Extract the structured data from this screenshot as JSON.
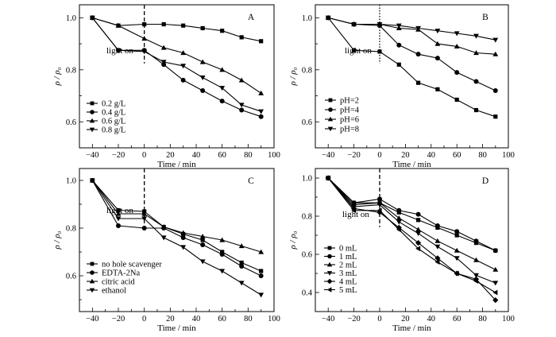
{
  "chart_data": [
    {
      "type": "line",
      "panel_label": "A",
      "xlabel": "Time / min",
      "ylabel": "ρ / ρ₀",
      "xlim": [
        -50,
        100
      ],
      "ylim": [
        0.5,
        1.05
      ],
      "xticks": [
        -40,
        -20,
        0,
        20,
        40,
        60,
        80,
        100
      ],
      "yticks": [
        0.6,
        0.8,
        1.0
      ],
      "annotation": "light on",
      "legend_position": "bottom-left",
      "series": [
        {
          "name": "0.2 g/L",
          "marker": "square",
          "x": [
            -40,
            -20,
            0,
            15,
            30,
            45,
            60,
            75,
            90
          ],
          "y": [
            1.0,
            0.97,
            0.975,
            0.975,
            0.97,
            0.96,
            0.95,
            0.925,
            0.91
          ]
        },
        {
          "name": "0.4 g/L",
          "marker": "circle",
          "x": [
            -40,
            -20,
            0,
            15,
            30,
            45,
            60,
            75,
            90
          ],
          "y": [
            1.0,
            0.875,
            0.875,
            0.82,
            0.76,
            0.72,
            0.68,
            0.645,
            0.62
          ]
        },
        {
          "name": "0.6 g/L",
          "marker": "triangle-up",
          "x": [
            -40,
            -20,
            0,
            15,
            30,
            45,
            60,
            75,
            90
          ],
          "y": [
            1.0,
            0.97,
            0.92,
            0.885,
            0.865,
            0.83,
            0.8,
            0.76,
            0.71
          ]
        },
        {
          "name": "0.8 g/L",
          "marker": "triangle-down",
          "x": [
            -40,
            -20,
            0,
            15,
            30,
            45,
            60,
            75,
            90
          ],
          "y": [
            1.0,
            0.875,
            0.87,
            0.83,
            0.815,
            0.77,
            0.73,
            0.665,
            0.64
          ]
        }
      ]
    },
    {
      "type": "line",
      "panel_label": "B",
      "xlabel": "Time / min",
      "ylabel": "ρ / ρ₀",
      "xlim": [
        -50,
        100
      ],
      "ylim": [
        0.5,
        1.05
      ],
      "xticks": [
        -40,
        -20,
        0,
        20,
        40,
        60,
        80,
        100
      ],
      "yticks": [
        0.6,
        0.8,
        1.0
      ],
      "annotation": "light on",
      "legend_position": "bottom-left",
      "series": [
        {
          "name": "pH=2",
          "marker": "square",
          "x": [
            -40,
            -20,
            0,
            15,
            30,
            45,
            60,
            75,
            90
          ],
          "y": [
            1.0,
            0.875,
            0.87,
            0.82,
            0.75,
            0.725,
            0.685,
            0.645,
            0.62
          ]
        },
        {
          "name": "pH=4",
          "marker": "circle",
          "x": [
            -40,
            -20,
            0,
            15,
            30,
            45,
            60,
            75,
            90
          ],
          "y": [
            1.0,
            0.975,
            0.97,
            0.895,
            0.86,
            0.845,
            0.79,
            0.755,
            0.72
          ]
        },
        {
          "name": "pH=6",
          "marker": "triangle-up",
          "x": [
            -40,
            -20,
            0,
            15,
            30,
            45,
            60,
            75,
            90
          ],
          "y": [
            1.0,
            0.975,
            0.975,
            0.96,
            0.955,
            0.9,
            0.89,
            0.865,
            0.86
          ]
        },
        {
          "name": "pH=8",
          "marker": "triangle-down",
          "x": [
            -40,
            -20,
            0,
            15,
            30,
            45,
            60,
            75,
            90
          ],
          "y": [
            1.0,
            0.975,
            0.975,
            0.97,
            0.96,
            0.95,
            0.94,
            0.93,
            0.915
          ]
        }
      ]
    },
    {
      "type": "line",
      "panel_label": "C",
      "xlabel": "Time / min",
      "ylabel": "ρ / ρ₀",
      "xlim": [
        -50,
        100
      ],
      "ylim": [
        0.45,
        1.05
      ],
      "xticks": [
        -40,
        -20,
        0,
        20,
        40,
        60,
        80,
        100
      ],
      "yticks": [
        0.6,
        0.8,
        1.0
      ],
      "annotation": "light on",
      "legend_position": "bottom-left",
      "series": [
        {
          "name": "no hole scavenger",
          "marker": "square",
          "x": [
            -40,
            -20,
            0,
            15,
            30,
            45,
            60,
            75,
            90
          ],
          "y": [
            1.0,
            0.875,
            0.87,
            0.805,
            0.775,
            0.75,
            0.7,
            0.655,
            0.62
          ]
        },
        {
          "name": "EDTA-2Na",
          "marker": "circle",
          "x": [
            -40,
            -20,
            0,
            15,
            30,
            45,
            60,
            75,
            90
          ],
          "y": [
            1.0,
            0.81,
            0.8,
            0.8,
            0.76,
            0.73,
            0.69,
            0.64,
            0.6
          ]
        },
        {
          "name": "citric acid",
          "marker": "triangle-up",
          "x": [
            -40,
            -20,
            0,
            15,
            30,
            45,
            60,
            75,
            90
          ],
          "y": [
            1.0,
            0.86,
            0.86,
            0.805,
            0.78,
            0.765,
            0.75,
            0.725,
            0.7
          ]
        },
        {
          "name": "ethanol",
          "marker": "triangle-down",
          "x": [
            -40,
            -20,
            0,
            15,
            30,
            45,
            60,
            75,
            90
          ],
          "y": [
            1.0,
            0.84,
            0.84,
            0.76,
            0.72,
            0.66,
            0.62,
            0.57,
            0.52
          ]
        }
      ]
    },
    {
      "type": "line",
      "panel_label": "D",
      "xlabel": "Time / min",
      "ylabel": "ρ / ρ₀",
      "xlim": [
        -50,
        100
      ],
      "ylim": [
        0.3,
        1.05
      ],
      "xticks": [
        -40,
        -20,
        0,
        20,
        40,
        60,
        80,
        100
      ],
      "yticks": [
        0.4,
        0.6,
        0.8,
        1.0
      ],
      "annotation": "light on",
      "legend_position": "bottom-left",
      "series": [
        {
          "name": "0 mL",
          "marker": "square",
          "x": [
            -40,
            -20,
            0,
            15,
            30,
            45,
            60,
            75,
            90
          ],
          "y": [
            1.0,
            0.87,
            0.87,
            0.82,
            0.78,
            0.74,
            0.7,
            0.66,
            0.62
          ]
        },
        {
          "name": "1 mL",
          "marker": "circle",
          "x": [
            -40,
            -20,
            0,
            15,
            30,
            45,
            60,
            75,
            90
          ],
          "y": [
            1.0,
            0.87,
            0.89,
            0.83,
            0.81,
            0.75,
            0.72,
            0.67,
            0.62
          ]
        },
        {
          "name": "2 mL",
          "marker": "triangle-up",
          "x": [
            -40,
            -20,
            0,
            15,
            30,
            45,
            60,
            75,
            90
          ],
          "y": [
            1.0,
            0.86,
            0.87,
            0.79,
            0.73,
            0.67,
            0.62,
            0.57,
            0.52
          ]
        },
        {
          "name": "3 mL",
          "marker": "triangle-down",
          "x": [
            -40,
            -20,
            0,
            15,
            30,
            45,
            60,
            75,
            90
          ],
          "y": [
            1.0,
            0.85,
            0.86,
            0.77,
            0.71,
            0.64,
            0.58,
            0.49,
            0.45
          ]
        },
        {
          "name": "4 mL",
          "marker": "diamond",
          "x": [
            -40,
            -20,
            0,
            15,
            30,
            45,
            60,
            75,
            90
          ],
          "y": [
            1.0,
            0.84,
            0.82,
            0.74,
            0.66,
            0.58,
            0.5,
            0.47,
            0.36
          ]
        },
        {
          "name": "5 mL",
          "marker": "triangle-left",
          "x": [
            -40,
            -20,
            0,
            15,
            30,
            45,
            60,
            75,
            90
          ],
          "y": [
            1.0,
            0.83,
            0.83,
            0.73,
            0.63,
            0.56,
            0.5,
            0.46,
            0.4
          ]
        }
      ]
    }
  ]
}
